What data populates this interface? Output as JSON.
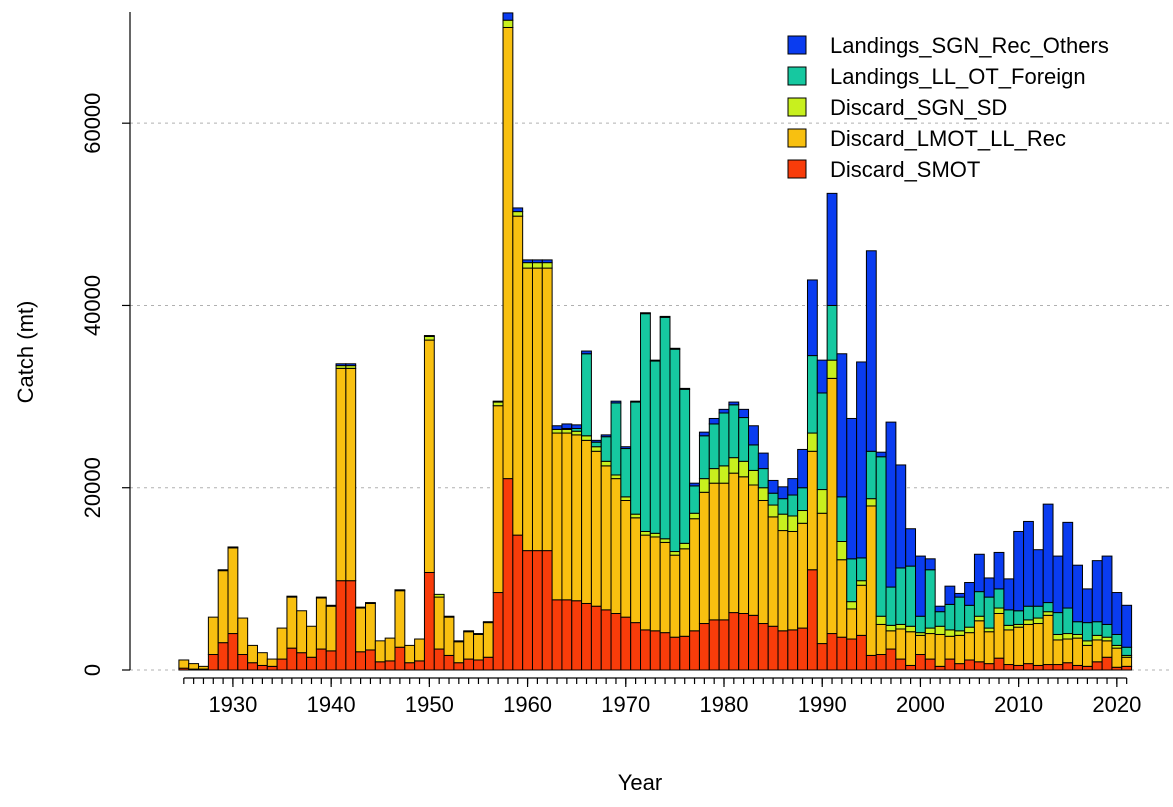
{
  "chart_data": {
    "type": "stacked_bar",
    "x_label": "Year",
    "y_label": "Catch (mt)",
    "legend": "top-right",
    "grid": true,
    "xlim": [
      1924,
      2022
    ],
    "xticks": [
      1930,
      1940,
      1950,
      1960,
      1970,
      1980,
      1990,
      2000,
      2010,
      2020
    ],
    "ylim": [
      0,
      72200
    ],
    "yticks": [
      0,
      20000,
      40000,
      60000
    ],
    "x": [
      1925,
      1926,
      1927,
      1928,
      1929,
      1930,
      1931,
      1932,
      1933,
      1934,
      1935,
      1936,
      1937,
      1938,
      1939,
      1940,
      1941,
      1942,
      1943,
      1944,
      1945,
      1946,
      1947,
      1948,
      1949,
      1950,
      1951,
      1952,
      1953,
      1954,
      1955,
      1956,
      1957,
      1958,
      1959,
      1960,
      1961,
      1962,
      1963,
      1964,
      1965,
      1966,
      1967,
      1968,
      1969,
      1970,
      1971,
      1972,
      1973,
      1974,
      1975,
      1976,
      1977,
      1978,
      1979,
      1980,
      1981,
      1982,
      1983,
      1984,
      1985,
      1986,
      1987,
      1988,
      1989,
      1990,
      1991,
      1992,
      1993,
      1994,
      1995,
      1996,
      1997,
      1998,
      1999,
      2000,
      2001,
      2002,
      2003,
      2004,
      2005,
      2006,
      2007,
      2008,
      2009,
      2010,
      2011,
      2012,
      2013,
      2014,
      2015,
      2016,
      2017,
      2018,
      2019,
      2020,
      2021
    ],
    "series": [
      {
        "name": "Landings_SGN_Rec_Others",
        "color": "#0a3cf0",
        "values": [
          0,
          0,
          0,
          0,
          0,
          0,
          0,
          0,
          0,
          0,
          0,
          0,
          0,
          0,
          0,
          0,
          200,
          200,
          0,
          0,
          0,
          0,
          0,
          0,
          0,
          100,
          0,
          0,
          0,
          0,
          0,
          0,
          100,
          800,
          400,
          300,
          300,
          300,
          400,
          500,
          400,
          300,
          200,
          200,
          200,
          200,
          100,
          100,
          100,
          100,
          100,
          100,
          300,
          400,
          600,
          400,
          300,
          900,
          2100,
          1700,
          1400,
          1300,
          1800,
          4200,
          8300,
          3600,
          12300,
          15700,
          15400,
          21500,
          22000,
          500,
          18100,
          11300,
          4100,
          6600,
          1200,
          600,
          2000,
          400,
          2500,
          4100,
          2100,
          4000,
          3400,
          8700,
          9300,
          6200,
          10800,
          6200,
          9400,
          6200,
          3700,
          6700,
          7500,
          4600,
          4600
        ]
      },
      {
        "name": "Landings_LL_OT_Foreign",
        "color": "#16c8a0",
        "values": [
          0,
          0,
          0,
          0,
          0,
          0,
          0,
          0,
          0,
          0,
          0,
          0,
          0,
          0,
          0,
          0,
          0,
          0,
          0,
          0,
          0,
          0,
          0,
          0,
          0,
          0,
          0,
          0,
          0,
          0,
          0,
          0,
          0,
          0,
          0,
          0,
          0,
          0,
          0,
          100,
          300,
          9000,
          500,
          2700,
          7900,
          5300,
          12300,
          23900,
          18900,
          24300,
          22200,
          16900,
          3000,
          4700,
          4900,
          5800,
          5800,
          4800,
          2800,
          2100,
          1300,
          1700,
          2300,
          2500,
          8500,
          10600,
          6000,
          4900,
          4700,
          2500,
          5200,
          17500,
          4200,
          6200,
          6600,
          1800,
          6400,
          1600,
          2800,
          3700,
          2400,
          2700,
          3400,
          2100,
          1700,
          1500,
          1500,
          1300,
          1000,
          2400,
          2800,
          1400,
          2000,
          1500,
          1400,
          1200,
          900
        ]
      },
      {
        "name": "Discard_SGN_SD",
        "color": "#c8f01e",
        "values": [
          0,
          0,
          0,
          0,
          100,
          100,
          0,
          0,
          0,
          0,
          0,
          100,
          0,
          0,
          100,
          100,
          300,
          300,
          100,
          100,
          0,
          0,
          100,
          0,
          0,
          400,
          300,
          100,
          100,
          100,
          100,
          100,
          400,
          800,
          500,
          600,
          600,
          600,
          400,
          400,
          400,
          500,
          500,
          500,
          400,
          400,
          400,
          400,
          400,
          400,
          400,
          600,
          600,
          1500,
          1600,
          1900,
          1700,
          1700,
          1600,
          1400,
          1300,
          1800,
          1700,
          1400,
          2000,
          2600,
          2000,
          2000,
          800,
          500,
          800,
          900,
          600,
          500,
          600,
          300,
          600,
          900,
          700,
          500,
          600,
          500,
          400,
          600,
          500,
          300,
          500,
          600,
          400,
          600,
          600,
          400,
          500,
          500,
          400,
          300,
          200
        ]
      },
      {
        "name": "Discard_LMOT_LL_Rec",
        "color": "#f8c010",
        "values": [
          900,
          600,
          300,
          4100,
          7900,
          9400,
          4000,
          1900,
          1400,
          800,
          3400,
          5600,
          4600,
          3400,
          5600,
          4900,
          23300,
          23300,
          4800,
          5100,
          2300,
          2500,
          6200,
          1900,
          2400,
          25500,
          5700,
          4200,
          2300,
          3000,
          2800,
          3800,
          20500,
          49500,
          35000,
          31000,
          31000,
          31000,
          18300,
          18300,
          18200,
          17900,
          17000,
          15800,
          14800,
          12800,
          11500,
          10400,
          10300,
          9900,
          9000,
          9600,
          12300,
          14400,
          15000,
          15000,
          15300,
          15000,
          14300,
          13500,
          12000,
          11000,
          10800,
          11500,
          13000,
          14300,
          28000,
          8500,
          3300,
          5500,
          16400,
          3300,
          2000,
          3300,
          3700,
          2100,
          2800,
          3500,
          2500,
          3100,
          3000,
          4500,
          3500,
          4900,
          3800,
          4200,
          4300,
          4600,
          5400,
          2700,
          2600,
          3000,
          2300,
          2400,
          1800,
          2100,
          1000
        ]
      },
      {
        "name": "Discard_SMOT",
        "color": "#f83c0a",
        "values": [
          200,
          100,
          100,
          1700,
          3000,
          4000,
          1700,
          800,
          500,
          400,
          1200,
          2400,
          1900,
          1400,
          2300,
          2100,
          9800,
          9800,
          2000,
          2200,
          900,
          1000,
          2500,
          800,
          1000,
          10700,
          2300,
          1600,
          800,
          1200,
          1100,
          1400,
          8500,
          21000,
          14800,
          13100,
          13100,
          13100,
          7700,
          7700,
          7600,
          7300,
          7000,
          6600,
          6200,
          5800,
          5200,
          4400,
          4300,
          4100,
          3600,
          3700,
          4300,
          5100,
          5500,
          5500,
          6300,
          6200,
          6000,
          5100,
          4800,
          4300,
          4400,
          4600,
          11000,
          2900,
          4000,
          3600,
          3400,
          3800,
          1600,
          1700,
          2300,
          1200,
          500,
          1700,
          1200,
          400,
          1200,
          700,
          1100,
          900,
          700,
          1300,
          600,
          500,
          700,
          500,
          600,
          600,
          800,
          500,
          400,
          900,
          1400,
          300,
          400
        ]
      }
    ]
  }
}
